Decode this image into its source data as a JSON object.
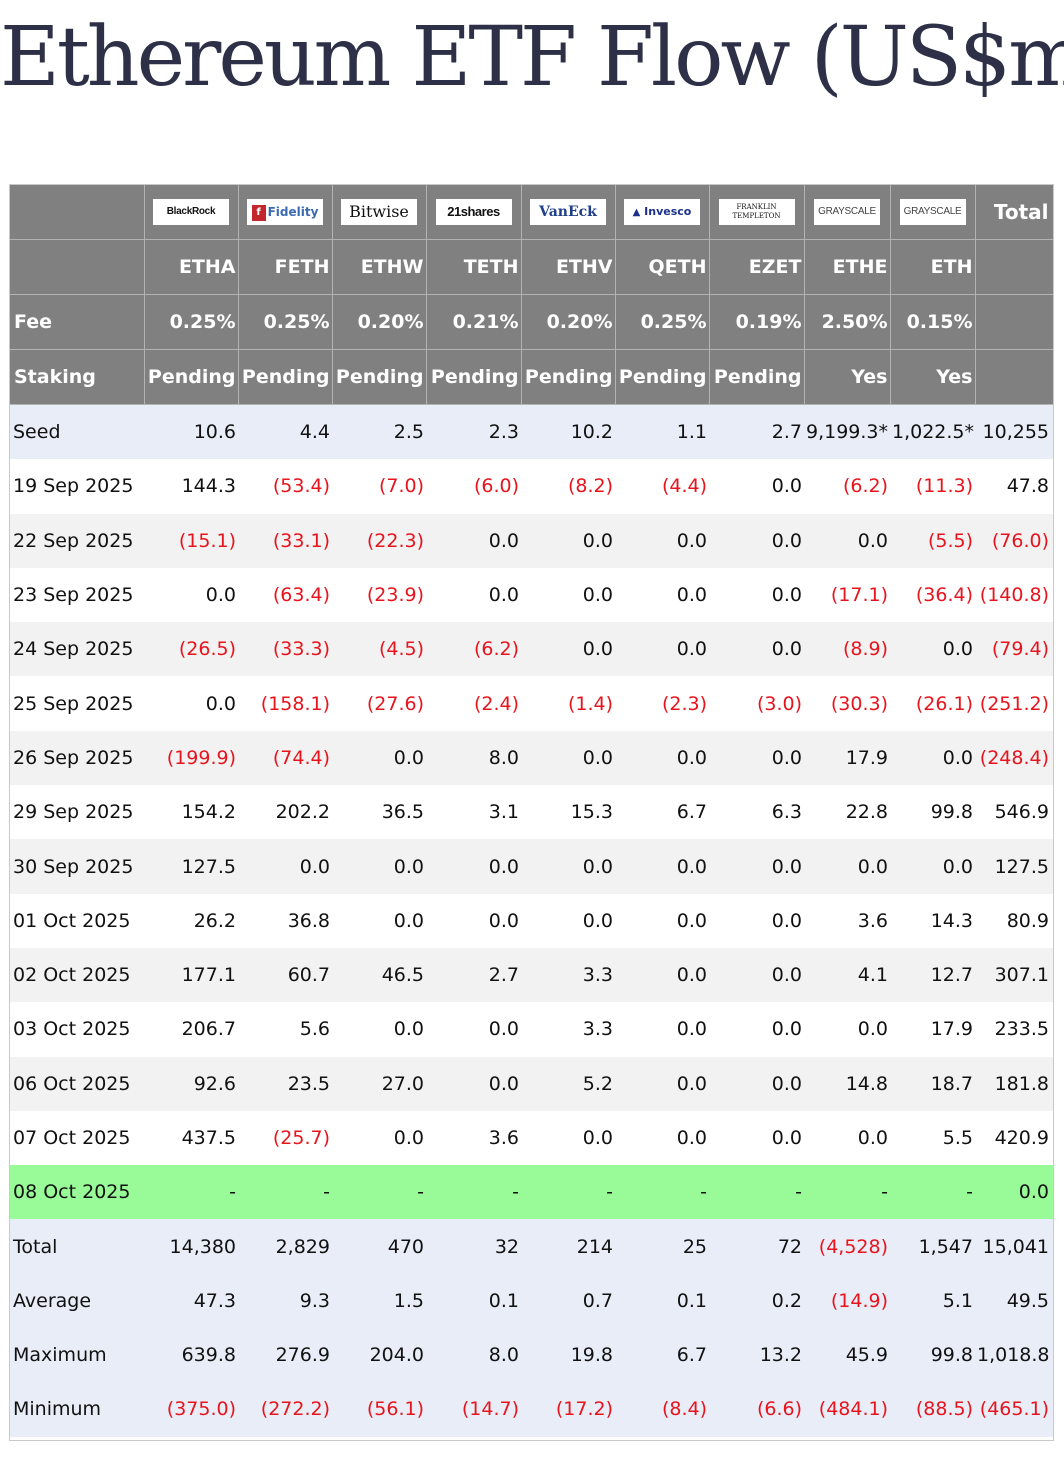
{
  "title": "Ethereum ETF Flow (US$m)",
  "colors": {
    "header_bg": "#808080",
    "negative": "#e8141d",
    "today_highlight": "#98fb98",
    "summary_bg": "#e9edf8",
    "stripe": "#f2f2f2"
  },
  "header": {
    "issuers": [
      {
        "logo": "BlackRock",
        "icon": "blackrock-logo"
      },
      {
        "logo": "Fidelity",
        "icon": "fidelity-logo"
      },
      {
        "logo": "Bitwise",
        "icon": "bitwise-logo"
      },
      {
        "logo": "21shares",
        "icon": "21shares-logo"
      },
      {
        "logo": "VanEck",
        "icon": "vaneck-logo"
      },
      {
        "logo": "Invesco",
        "icon": "invesco-logo"
      },
      {
        "logo": "FRANKLIN TEMPLETON",
        "icon": "franklin-templeton-logo"
      },
      {
        "logo": "GRAYSCALE",
        "icon": "grayscale-logo"
      },
      {
        "logo": "GRAYSCALE",
        "icon": "grayscale-logo"
      }
    ],
    "total_label": "Total",
    "tickers": [
      "ETHA",
      "FETH",
      "ETHW",
      "TETH",
      "ETHV",
      "QETH",
      "EZET",
      "ETHE",
      "ETH"
    ],
    "fee_label": "Fee",
    "fees": [
      "0.25%",
      "0.25%",
      "0.20%",
      "0.21%",
      "0.20%",
      "0.25%",
      "0.19%",
      "2.50%",
      "0.15%"
    ],
    "staking_label": "Staking",
    "staking": [
      "Pending",
      "Pending",
      "Pending",
      "Pending",
      "Pending",
      "Pending",
      "Pending",
      "Yes",
      "Yes"
    ]
  },
  "seed": {
    "label": "Seed",
    "values": [
      "10.6",
      "4.4",
      "2.5",
      "2.3",
      "10.2",
      "1.1",
      "2.7",
      "9,199.3*",
      "1,022.5*",
      "10,255"
    ]
  },
  "rows": [
    {
      "date": "19 Sep 2025",
      "values": [
        "144.3",
        "(53.4)",
        "(7.0)",
        "(6.0)",
        "(8.2)",
        "(4.4)",
        "0.0",
        "(6.2)",
        "(11.3)",
        "47.8"
      ]
    },
    {
      "date": "22 Sep 2025",
      "values": [
        "(15.1)",
        "(33.1)",
        "(22.3)",
        "0.0",
        "0.0",
        "0.0",
        "0.0",
        "0.0",
        "(5.5)",
        "(76.0)"
      ]
    },
    {
      "date": "23 Sep 2025",
      "values": [
        "0.0",
        "(63.4)",
        "(23.9)",
        "0.0",
        "0.0",
        "0.0",
        "0.0",
        "(17.1)",
        "(36.4)",
        "(140.8)"
      ]
    },
    {
      "date": "24 Sep 2025",
      "values": [
        "(26.5)",
        "(33.3)",
        "(4.5)",
        "(6.2)",
        "0.0",
        "0.0",
        "0.0",
        "(8.9)",
        "0.0",
        "(79.4)"
      ]
    },
    {
      "date": "25 Sep 2025",
      "values": [
        "0.0",
        "(158.1)",
        "(27.6)",
        "(2.4)",
        "(1.4)",
        "(2.3)",
        "(3.0)",
        "(30.3)",
        "(26.1)",
        "(251.2)"
      ]
    },
    {
      "date": "26 Sep 2025",
      "values": [
        "(199.9)",
        "(74.4)",
        "0.0",
        "8.0",
        "0.0",
        "0.0",
        "0.0",
        "17.9",
        "0.0",
        "(248.4)"
      ]
    },
    {
      "date": "29 Sep 2025",
      "values": [
        "154.2",
        "202.2",
        "36.5",
        "3.1",
        "15.3",
        "6.7",
        "6.3",
        "22.8",
        "99.8",
        "546.9"
      ]
    },
    {
      "date": "30 Sep 2025",
      "values": [
        "127.5",
        "0.0",
        "0.0",
        "0.0",
        "0.0",
        "0.0",
        "0.0",
        "0.0",
        "0.0",
        "127.5"
      ]
    },
    {
      "date": "01 Oct 2025",
      "values": [
        "26.2",
        "36.8",
        "0.0",
        "0.0",
        "0.0",
        "0.0",
        "0.0",
        "3.6",
        "14.3",
        "80.9"
      ]
    },
    {
      "date": "02 Oct 2025",
      "values": [
        "177.1",
        "60.7",
        "46.5",
        "2.7",
        "3.3",
        "0.0",
        "0.0",
        "4.1",
        "12.7",
        "307.1"
      ]
    },
    {
      "date": "03 Oct 2025",
      "values": [
        "206.7",
        "5.6",
        "0.0",
        "0.0",
        "3.3",
        "0.0",
        "0.0",
        "0.0",
        "17.9",
        "233.5"
      ]
    },
    {
      "date": "06 Oct 2025",
      "values": [
        "92.6",
        "23.5",
        "27.0",
        "0.0",
        "5.2",
        "0.0",
        "0.0",
        "14.8",
        "18.7",
        "181.8"
      ]
    },
    {
      "date": "07 Oct 2025",
      "values": [
        "437.5",
        "(25.7)",
        "0.0",
        "3.6",
        "0.0",
        "0.0",
        "0.0",
        "0.0",
        "5.5",
        "420.9"
      ]
    }
  ],
  "today": {
    "date": "08 Oct 2025",
    "values": [
      "-",
      "-",
      "-",
      "-",
      "-",
      "-",
      "-",
      "-",
      "-",
      "0.0"
    ]
  },
  "summary": [
    {
      "label": "Total",
      "values": [
        "14,380",
        "2,829",
        "470",
        "32",
        "214",
        "25",
        "72",
        "(4,528)",
        "1,547",
        "15,041"
      ]
    },
    {
      "label": "Average",
      "values": [
        "47.3",
        "9.3",
        "1.5",
        "0.1",
        "0.7",
        "0.1",
        "0.2",
        "(14.9)",
        "5.1",
        "49.5"
      ]
    },
    {
      "label": "Maximum",
      "values": [
        "639.8",
        "276.9",
        "204.0",
        "8.0",
        "19.8",
        "6.7",
        "13.2",
        "45.9",
        "99.8",
        "1,018.8"
      ]
    },
    {
      "label": "Minimum",
      "values": [
        "(375.0)",
        "(272.2)",
        "(56.1)",
        "(14.7)",
        "(17.2)",
        "(8.4)",
        "(6.6)",
        "(484.1)",
        "(88.5)",
        "(465.1)"
      ]
    }
  ]
}
